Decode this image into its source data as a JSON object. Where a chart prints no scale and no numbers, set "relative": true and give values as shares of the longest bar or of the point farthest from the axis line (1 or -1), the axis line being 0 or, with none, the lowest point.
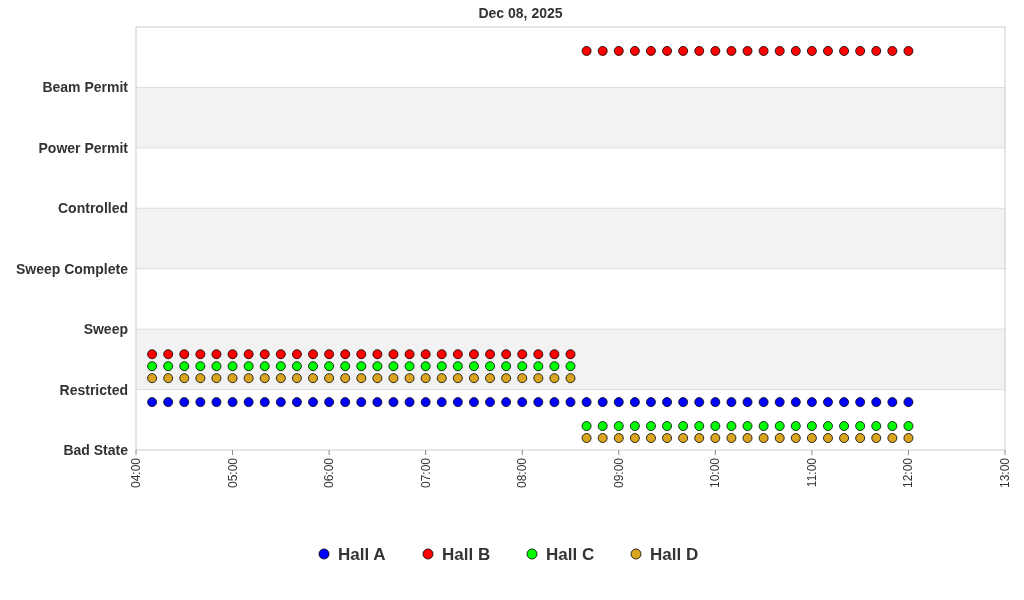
{
  "chart_data": {
    "type": "scatter",
    "title": "Dec 08, 2025",
    "relative": true,
    "x": [
      "2025-12-08T04:10",
      "2025-12-08T04:20",
      "2025-12-08T04:30",
      "2025-12-08T04:40",
      "2025-12-08T04:50",
      "2025-12-08T05:00",
      "2025-12-08T05:10",
      "2025-12-08T05:20",
      "2025-12-08T05:30",
      "2025-12-08T05:40",
      "2025-12-08T05:50",
      "2025-12-08T06:00",
      "2025-12-08T06:10",
      "2025-12-08T06:20",
      "2025-12-08T06:30",
      "2025-12-08T06:40",
      "2025-12-08T06:50",
      "2025-12-08T07:00",
      "2025-12-08T07:10",
      "2025-12-08T07:20",
      "2025-12-08T07:30",
      "2025-12-08T07:40",
      "2025-12-08T07:50",
      "2025-12-08T08:00",
      "2025-12-08T08:10",
      "2025-12-08T08:20",
      "2025-12-08T08:30",
      "2025-12-08T08:40",
      "2025-12-08T08:50",
      "2025-12-08T09:00",
      "2025-12-08T09:10",
      "2025-12-08T09:20",
      "2025-12-08T09:30",
      "2025-12-08T09:40",
      "2025-12-08T09:50",
      "2025-12-08T10:00",
      "2025-12-08T10:10",
      "2025-12-08T10:20",
      "2025-12-08T10:30",
      "2025-12-08T10:40",
      "2025-12-08T10:50",
      "2025-12-08T11:00",
      "2025-12-08T11:10",
      "2025-12-08T11:20",
      "2025-12-08T11:30",
      "2025-12-08T11:40",
      "2025-12-08T11:50",
      "2025-12-08T12:00"
    ],
    "y_categories": [
      "Beam Permit",
      "Power Permit",
      "Controlled",
      "Sweep Complete",
      "Sweep",
      "Restricted",
      "Bad State"
    ],
    "series": [
      {
        "name": "Hall A",
        "color": "#0000ff",
        "values": [
          0.12,
          0.12,
          0.12,
          0.12,
          0.12,
          0.12,
          0.12,
          0.12,
          0.12,
          0.12,
          0.12,
          0.12,
          0.12,
          0.12,
          0.12,
          0.12,
          0.12,
          0.12,
          0.12,
          0.12,
          0.12,
          0.12,
          0.12,
          0.12,
          0.12,
          0.12,
          0.12,
          0.12,
          0.12,
          0.12,
          0.12,
          0.12,
          0.12,
          0.12,
          0.12,
          0.12,
          0.12,
          0.12,
          0.12,
          0.12,
          0.12,
          0.12,
          0.12,
          0.12,
          0.12,
          0.12,
          0.12,
          0.12
        ]
      },
      {
        "name": "Hall B",
        "color": "#ff0000",
        "values": [
          0.24,
          0.24,
          0.24,
          0.24,
          0.24,
          0.24,
          0.24,
          0.24,
          0.24,
          0.24,
          0.24,
          0.24,
          0.24,
          0.24,
          0.24,
          0.24,
          0.24,
          0.24,
          0.24,
          0.24,
          0.24,
          0.24,
          0.24,
          0.24,
          0.24,
          0.24,
          0.24,
          1,
          1,
          1,
          1,
          1,
          1,
          1,
          1,
          1,
          1,
          1,
          1,
          1,
          1,
          1,
          1,
          1,
          1,
          1,
          1,
          1
        ]
      },
      {
        "name": "Hall C",
        "color": "#00ff00",
        "values": [
          0.21,
          0.21,
          0.21,
          0.21,
          0.21,
          0.21,
          0.21,
          0.21,
          0.21,
          0.21,
          0.21,
          0.21,
          0.21,
          0.21,
          0.21,
          0.21,
          0.21,
          0.21,
          0.21,
          0.21,
          0.21,
          0.21,
          0.21,
          0.21,
          0.21,
          0.21,
          0.21,
          0.06,
          0.06,
          0.06,
          0.06,
          0.06,
          0.06,
          0.06,
          0.06,
          0.06,
          0.06,
          0.06,
          0.06,
          0.06,
          0.06,
          0.06,
          0.06,
          0.06,
          0.06,
          0.06,
          0.06,
          0.06
        ]
      },
      {
        "name": "Hall D",
        "color": "#daa520",
        "values": [
          0.18,
          0.18,
          0.18,
          0.18,
          0.18,
          0.18,
          0.18,
          0.18,
          0.18,
          0.18,
          0.18,
          0.18,
          0.18,
          0.18,
          0.18,
          0.18,
          0.18,
          0.18,
          0.18,
          0.18,
          0.18,
          0.18,
          0.18,
          0.18,
          0.18,
          0.18,
          0.18,
          0.03,
          0.03,
          0.03,
          0.03,
          0.03,
          0.03,
          0.03,
          0.03,
          0.03,
          0.03,
          0.03,
          0.03,
          0.03,
          0.03,
          0.03,
          0.03,
          0.03,
          0.03,
          0.03,
          0.03,
          0.03
        ]
      }
    ],
    "xlim": [
      "2025-12-08T04:00",
      "2025-12-08T13:00"
    ],
    "xticks": [
      {
        "value": "2025-12-08T04:00",
        "label": "04:00"
      },
      {
        "value": "2025-12-08T05:00",
        "label": "05:00"
      },
      {
        "value": "2025-12-08T06:00",
        "label": "06:00"
      },
      {
        "value": "2025-12-08T07:00",
        "label": "07:00"
      },
      {
        "value": "2025-12-08T08:00",
        "label": "08:00"
      },
      {
        "value": "2025-12-08T09:00",
        "label": "09:00"
      },
      {
        "value": "2025-12-08T10:00",
        "label": "10:00"
      },
      {
        "value": "2025-12-08T11:00",
        "label": "11:00"
      },
      {
        "value": "2025-12-08T12:00",
        "label": "12:00"
      },
      {
        "value": "2025-12-08T13:00",
        "label": "13:00"
      }
    ],
    "grid": "y",
    "legend": "bottom",
    "marker": "circle"
  }
}
